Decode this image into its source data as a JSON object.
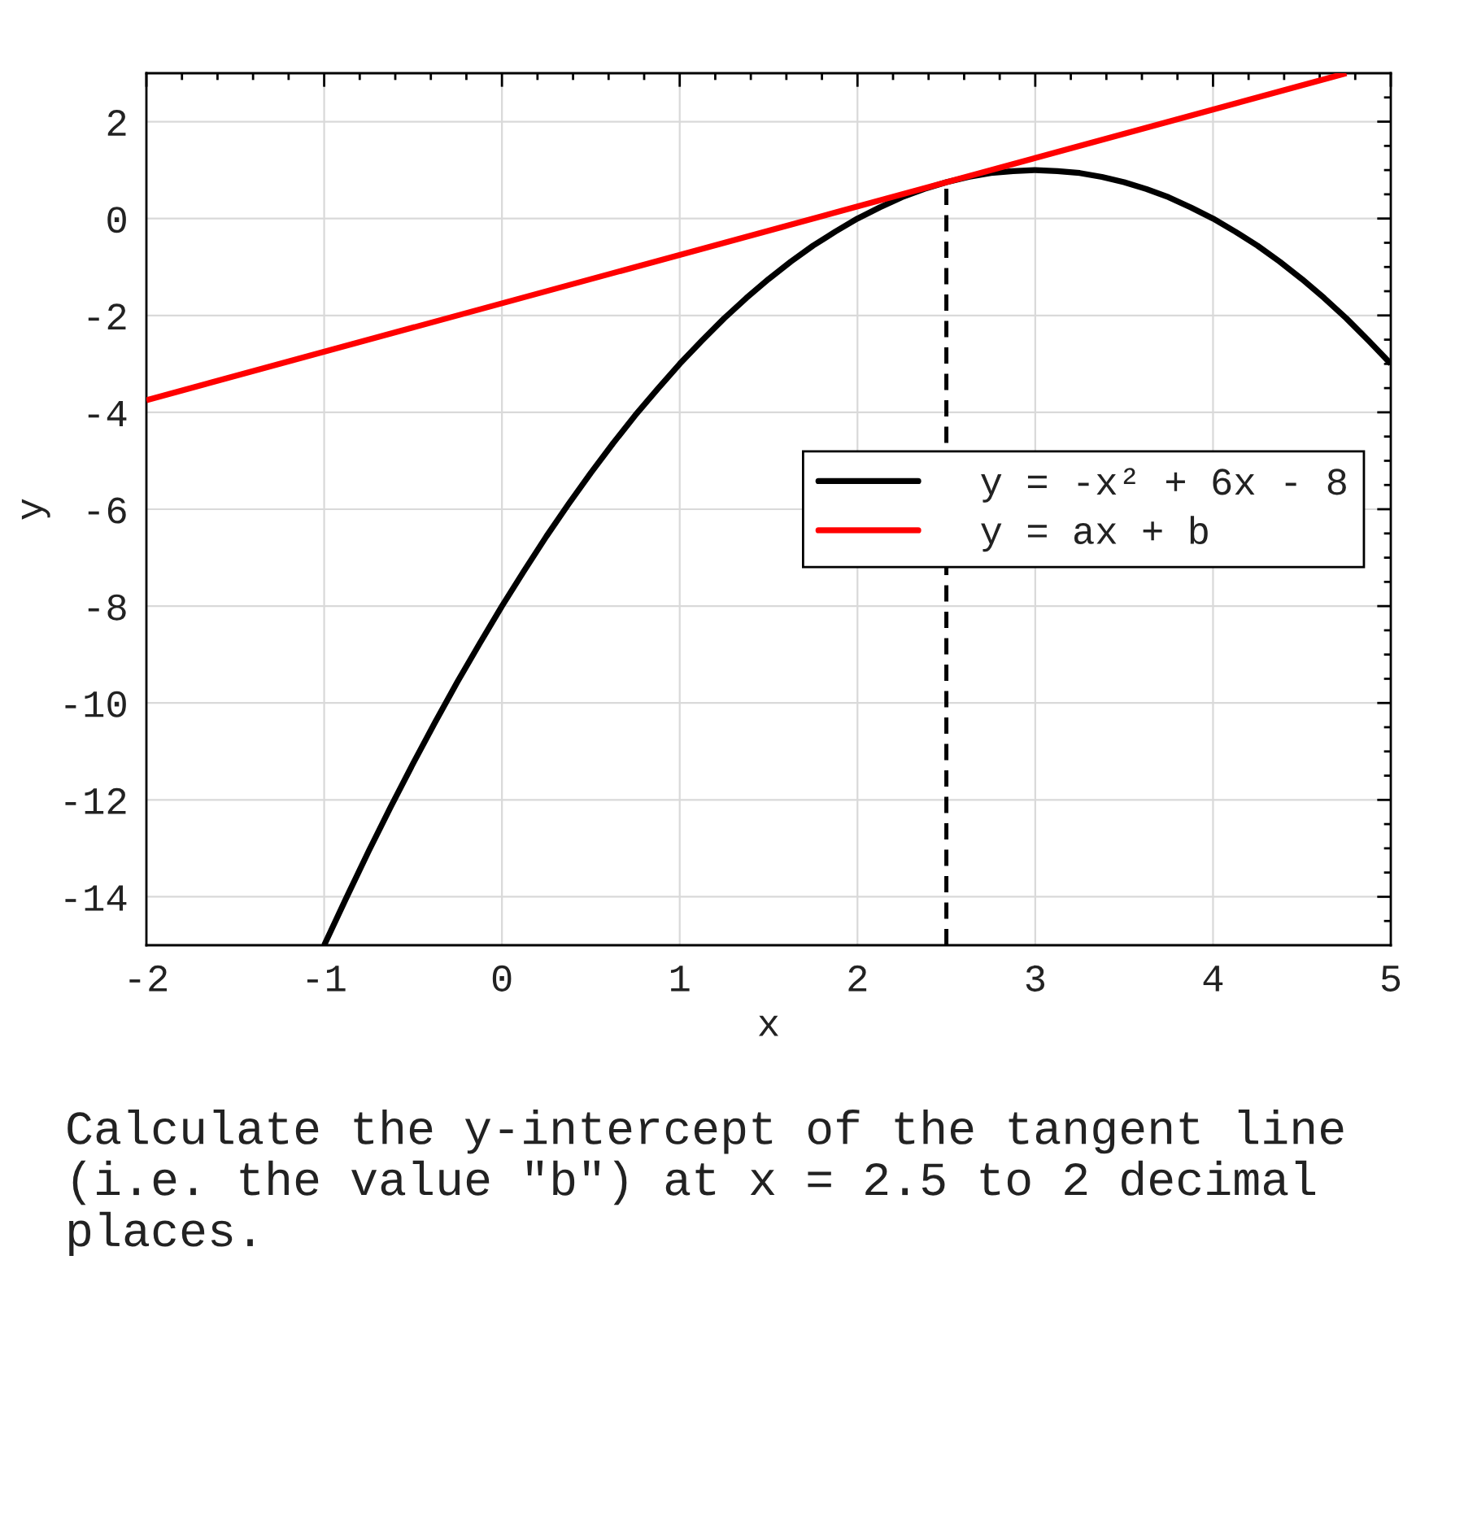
{
  "chart_data": {
    "type": "line",
    "xlabel": "x",
    "ylabel": "y",
    "xlim": [
      -2,
      5
    ],
    "ylim": [
      -15,
      3
    ],
    "xticks": [
      -2,
      -1,
      0,
      1,
      2,
      3,
      4,
      5,
      {
        "value": -1.8,
        "label": null
      },
      {
        "value": -1.6,
        "label": null
      },
      {
        "value": -1.4,
        "label": null
      },
      {
        "value": -1.2,
        "label": null
      },
      {
        "value": -0.8,
        "label": null
      },
      {
        "value": -0.6,
        "label": null
      },
      {
        "value": -0.4,
        "label": null
      },
      {
        "value": -0.2,
        "label": null
      },
      {
        "value": 0.2,
        "label": null
      },
      {
        "value": 0.4,
        "label": null
      },
      {
        "value": 0.6,
        "label": null
      },
      {
        "value": 0.8,
        "label": null
      },
      {
        "value": 1.2,
        "label": null
      },
      {
        "value": 1.4,
        "label": null
      },
      {
        "value": 1.6,
        "label": null
      },
      {
        "value": 1.8,
        "label": null
      },
      {
        "value": 2.2,
        "label": null
      },
      {
        "value": 2.4,
        "label": null
      },
      {
        "value": 2.6,
        "label": null
      },
      {
        "value": 2.8,
        "label": null
      },
      {
        "value": 3.2,
        "label": null
      },
      {
        "value": 3.4,
        "label": null
      },
      {
        "value": 3.6,
        "label": null
      },
      {
        "value": 3.8,
        "label": null
      },
      {
        "value": 4.2,
        "label": null
      },
      {
        "value": 4.4,
        "label": null
      },
      {
        "value": 4.6,
        "label": null
      },
      {
        "value": 4.8,
        "label": null
      }
    ],
    "yticks": [
      -14,
      -12,
      -10,
      -8,
      -6,
      -4,
      -2,
      0,
      2,
      {
        "value": -14.5,
        "label": null
      },
      {
        "value": -13.5,
        "label": null
      },
      {
        "value": -13,
        "label": null
      },
      {
        "value": -12.5,
        "label": null
      },
      {
        "value": -11.5,
        "label": null
      },
      {
        "value": -11,
        "label": null
      },
      {
        "value": -10.5,
        "label": null
      },
      {
        "value": -9.5,
        "label": null
      },
      {
        "value": -9,
        "label": null
      },
      {
        "value": -8.5,
        "label": null
      },
      {
        "value": -7.5,
        "label": null
      },
      {
        "value": -7,
        "label": null
      },
      {
        "value": -6.5,
        "label": null
      },
      {
        "value": -5.5,
        "label": null
      },
      {
        "value": -5,
        "label": null
      },
      {
        "value": -4.5,
        "label": null
      },
      {
        "value": -3.5,
        "label": null
      },
      {
        "value": -3,
        "label": null
      },
      {
        "value": -2.5,
        "label": null
      },
      {
        "value": -1.5,
        "label": null
      },
      {
        "value": -1,
        "label": null
      },
      {
        "value": -0.5,
        "label": null
      },
      {
        "value": 0.5,
        "label": null
      },
      {
        "value": 1,
        "label": null
      },
      {
        "value": 1.5,
        "label": null
      },
      {
        "value": 2.5,
        "label": null
      }
    ],
    "grid": true,
    "legend": "right",
    "series": [
      {
        "name": "y = -x² + 6x - 8",
        "color": "#000000",
        "x": [
          -1,
          -0.875,
          -0.75,
          -0.625,
          -0.5,
          -0.375,
          -0.25,
          -0.125,
          0,
          0.125,
          0.25,
          0.375,
          0.5,
          0.625,
          0.75,
          0.875,
          1,
          1.125,
          1.25,
          1.375,
          1.5,
          1.625,
          1.75,
          1.875,
          2,
          2.125,
          2.25,
          2.375,
          2.5,
          2.625,
          2.75,
          2.875,
          3,
          3.125,
          3.25,
          3.375,
          3.5,
          3.625,
          3.75,
          3.875,
          4,
          4.125,
          4.25,
          4.375,
          4.5,
          4.625,
          4.75,
          4.875,
          5
        ],
        "values": [
          -15,
          -14.02,
          -13.06,
          -12.14,
          -11.25,
          -10.39,
          -9.56,
          -8.77,
          -8,
          -7.27,
          -6.56,
          -5.89,
          -5.25,
          -4.64,
          -4.06,
          -3.52,
          -3,
          -2.52,
          -2.06,
          -1.64,
          -1.25,
          -0.89,
          -0.56,
          -0.27,
          0,
          0.23,
          0.44,
          0.61,
          0.75,
          0.86,
          0.94,
          0.98,
          1,
          0.98,
          0.94,
          0.86,
          0.75,
          0.61,
          0.44,
          0.23,
          0,
          -0.27,
          -0.56,
          -0.89,
          -1.25,
          -1.64,
          -2.06,
          -2.52,
          -3
        ]
      },
      {
        "name": "y = ax + b",
        "color": "#ff0000",
        "x": [
          -2,
          4.75
        ],
        "values": [
          -3.75,
          3
        ]
      },
      {
        "color": "#000000",
        "line_style": "dashed",
        "x": [
          2.5,
          2.5
        ],
        "values": [
          -15,
          0.75
        ]
      }
    ],
    "annotations": [
      "Calculate the y-intercept of the tangent line (i.e. the value \"b\") at x = 2.5 to 2 decimal places."
    ]
  }
}
